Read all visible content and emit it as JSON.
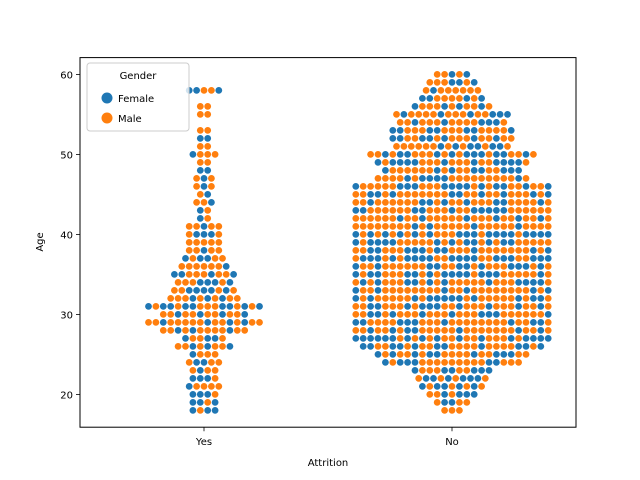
{
  "chart_data": {
    "type": "scatter",
    "subtype": "swarm",
    "title": "",
    "xlabel": "Attrition",
    "ylabel": "Age",
    "categories": [
      "Yes",
      "No"
    ],
    "ylim": [
      15.9,
      62.1
    ],
    "yticks": [
      20,
      30,
      40,
      50,
      60
    ],
    "grid": false,
    "legend": {
      "title": "Gender",
      "placement": "top-left",
      "entries": [
        "Female",
        "Male"
      ]
    },
    "colors": {
      "Female": "#1f77b4",
      "Male": "#ff7f0e"
    },
    "series": [
      {
        "category": "Yes",
        "counts_by_age": {
          "18": 4,
          "19": 4,
          "20": 4,
          "21": 5,
          "22": 4,
          "23": 4,
          "24": 5,
          "25": 4,
          "26": 8,
          "27": 6,
          "28": 12,
          "29": 16,
          "30": 12,
          "31": 16,
          "32": 10,
          "33": 9,
          "34": 8,
          "35": 9,
          "36": 7,
          "37": 6,
          "38": 5,
          "39": 5,
          "40": 5,
          "41": 5,
          "42": 2,
          "43": 2,
          "44": 3,
          "45": 2,
          "46": 3,
          "47": 3,
          "48": 2,
          "49": 2,
          "50": 4,
          "51": 2,
          "52": 2,
          "53": 2,
          "55": 2,
          "56": 2,
          "58": 5
        },
        "male_share": 0.62
      },
      {
        "category": "No",
        "counts_by_age": {
          "18": 3,
          "19": 5,
          "20": 7,
          "21": 9,
          "22": 10,
          "23": 11,
          "24": 19,
          "25": 21,
          "26": 25,
          "27": 27,
          "28": 27,
          "29": 27,
          "30": 27,
          "31": 27,
          "32": 27,
          "33": 27,
          "34": 27,
          "35": 27,
          "36": 27,
          "37": 27,
          "38": 27,
          "39": 27,
          "40": 27,
          "41": 27,
          "42": 27,
          "43": 27,
          "44": 27,
          "45": 27,
          "46": 27,
          "47": 21,
          "48": 19,
          "49": 21,
          "50": 23,
          "51": 16,
          "52": 17,
          "53": 17,
          "54": 15,
          "55": 16,
          "56": 11,
          "57": 9,
          "58": 8,
          "59": 7,
          "60": 5
        },
        "male_share": 0.6
      }
    ]
  }
}
